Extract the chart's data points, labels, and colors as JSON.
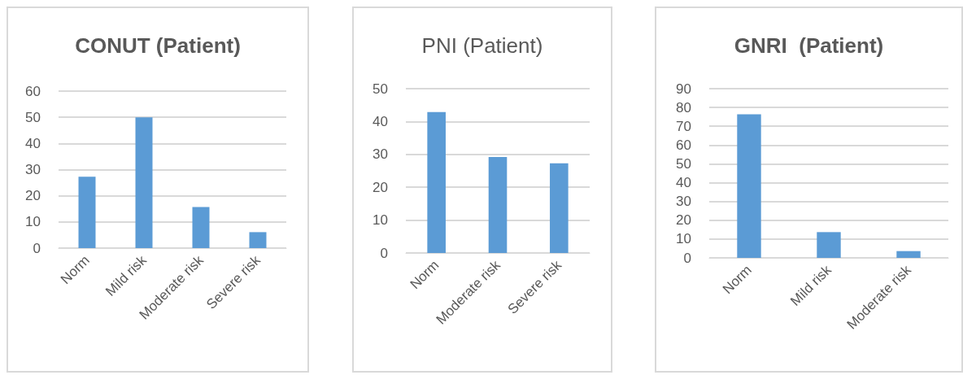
{
  "chart_data": [
    {
      "type": "bar",
      "title": "CONUT (Patient)",
      "categories": [
        "Norm",
        "Mild risk",
        "Moderate risk",
        "Severe risk"
      ],
      "values": [
        27.3,
        50,
        15.7,
        6.1
      ],
      "color": "#5b9bd5",
      "ylim": [
        0,
        60
      ],
      "yticks": [
        0,
        10,
        20,
        30,
        40,
        50,
        60
      ],
      "grid": "y"
    },
    {
      "type": "bar",
      "title": "PNI (Patient)",
      "categories": [
        "Norm",
        "Moderate risk",
        "Severe risk"
      ],
      "values": [
        42.9,
        29.2,
        27.3
      ],
      "color": "#5b9bd5",
      "ylim": [
        0,
        50
      ],
      "yticks": [
        0,
        10,
        20,
        30,
        40,
        50
      ],
      "grid": "y"
    },
    {
      "type": "bar",
      "title": "GNRI  (Patient)",
      "categories": [
        "Norm",
        "Mild risk",
        "Moderate risk"
      ],
      "values": [
        76.4,
        13.7,
        3.6
      ],
      "color": "#5b9bd5",
      "ylim": [
        0,
        90
      ],
      "yticks": [
        0,
        10,
        20,
        30,
        40,
        50,
        60,
        70,
        80,
        90
      ],
      "grid": "y"
    }
  ]
}
